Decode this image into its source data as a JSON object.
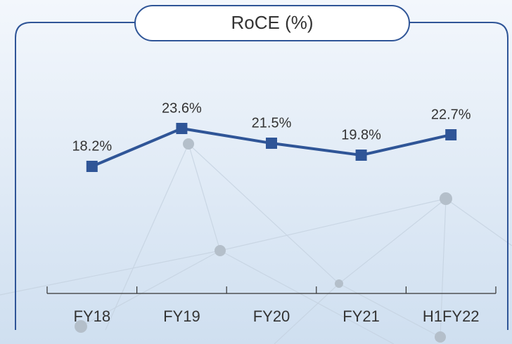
{
  "chart_data": {
    "type": "line",
    "title": "RoCE (%)",
    "categories": [
      "FY18",
      "FY19",
      "FY20",
      "FY21",
      "H1FY22"
    ],
    "values": [
      18.2,
      23.6,
      21.5,
      19.8,
      22.7
    ],
    "value_labels": [
      "18.2%",
      "23.6%",
      "21.5%",
      "19.8%",
      "22.7%"
    ],
    "color": "#2f5597"
  }
}
